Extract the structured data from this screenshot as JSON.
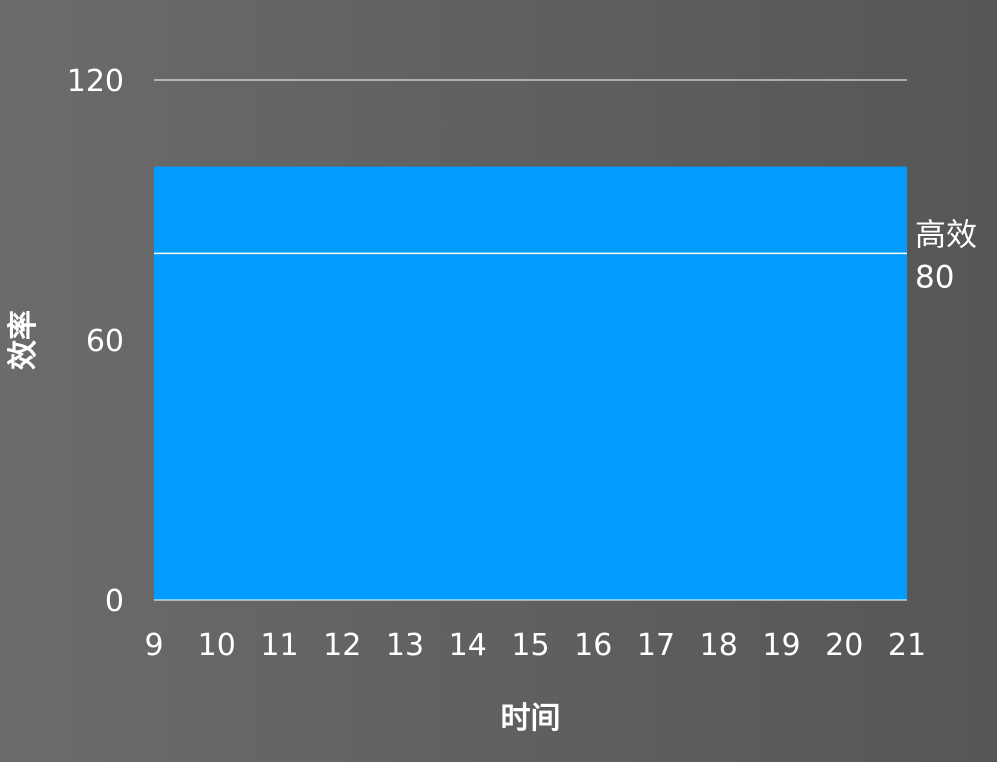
{
  "chart_data": {
    "type": "area",
    "x": [
      9,
      10,
      11,
      12,
      13,
      14,
      15,
      16,
      17,
      18,
      19,
      20,
      21
    ],
    "series": [
      {
        "values": [
          100,
          100,
          100,
          100,
          100,
          100,
          100,
          100,
          100,
          100,
          100,
          100,
          100
        ]
      }
    ],
    "xlabel": "时间",
    "ylabel": "效率",
    "xlim": [
      9,
      21
    ],
    "ylim": [
      0,
      120
    ],
    "y_ticks": [
      0,
      60,
      120
    ],
    "grid": false,
    "reference_line": {
      "value": 80,
      "label": "高效",
      "value_label": "80"
    },
    "colors": {
      "area": "#009cff",
      "lines": "#ffffff",
      "text": "#ffffff"
    }
  }
}
